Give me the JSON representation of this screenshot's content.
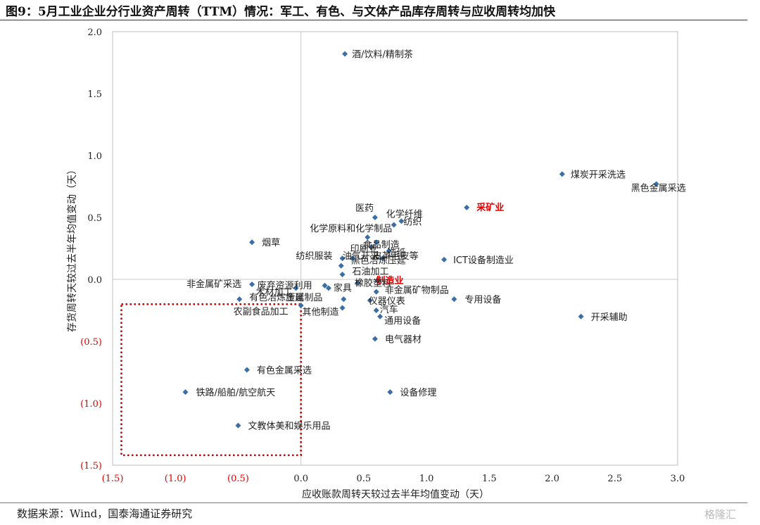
{
  "title": "图9：5月工业企业分行业资产周转（TTM）情况：军工、有色、与文体产品库存周转与应收周转均加快",
  "source": "数据来源：Wind，国泰海通证券研究",
  "watermark": "格隆汇",
  "chart_data": {
    "type": "scatter",
    "title": "",
    "xlabel": "应收账款周转天较过去半年均值变动（天）",
    "ylabel": "存货周转天较过去半年均值变动（天）",
    "xlim": [
      -1.5,
      3.0
    ],
    "ylim": [
      -1.5,
      2.0
    ],
    "xticks": [
      -1.5,
      -1.0,
      -0.5,
      0.0,
      0.5,
      1.0,
      1.5,
      2.0,
      2.5,
      3.0
    ],
    "yticks": [
      -1.5,
      -1.0,
      -0.5,
      0.0,
      0.5,
      1.0,
      1.5,
      2.0
    ],
    "xtick_labels": [
      "(1.5)",
      "(1.0)",
      "(0.5)",
      "0.0",
      "0.5",
      "1.0",
      "1.5",
      "2.0",
      "2.5",
      "3.0"
    ],
    "ytick_labels": [
      "(1.5)",
      "(1.0)",
      "(0.5)",
      "0.0",
      "0.5",
      "1.0",
      "1.5",
      "2.0"
    ],
    "negative_tick_color": "#e00000",
    "marker_color": "#3a6ea5",
    "highlight_color": "#e00000",
    "grid": false,
    "reference_lines": {
      "x": 0.0,
      "y": 0.0
    },
    "highlight_box": {
      "x": [
        -1.43,
        0.0
      ],
      "y": [
        -1.42,
        -0.2
      ],
      "color": "#c00000",
      "style": "dotted"
    },
    "points": [
      {
        "label": "酒/饮料/精制茶",
        "x": 0.35,
        "y": 1.82
      },
      {
        "label": "煤炭开采洗选",
        "x": 2.08,
        "y": 0.85
      },
      {
        "label": "黑色金属采选",
        "x": 2.83,
        "y": 0.77
      },
      {
        "label": "采矿业",
        "x": 1.32,
        "y": 0.58,
        "highlight": true
      },
      {
        "label": "医药",
        "x": 0.59,
        "y": 0.5
      },
      {
        "label": "化学纤维",
        "x": 0.74,
        "y": 0.44
      },
      {
        "label": "纺织",
        "x": 0.8,
        "y": 0.47
      },
      {
        "label": "化学原料和化学制品",
        "x": 0.53,
        "y": 0.34
      },
      {
        "label": "食品制造",
        "x": 0.6,
        "y": 0.3
      },
      {
        "label": "印刷业",
        "x": 0.56,
        "y": 0.26
      },
      {
        "label": "造纸",
        "x": 0.7,
        "y": 0.23
      },
      {
        "label": "烟草",
        "x": -0.39,
        "y": 0.3
      },
      {
        "label": "纺织服装",
        "x": 0.33,
        "y": 0.17
      },
      {
        "label": "油气开采",
        "x": 0.41,
        "y": 0.17
      },
      {
        "label": "皮革毛皮等",
        "x": 0.65,
        "y": 0.17
      },
      {
        "label": "ICT设备制造业",
        "x": 1.14,
        "y": 0.16
      },
      {
        "label": "黑色冶炼压延",
        "x": 0.32,
        "y": 0.11
      },
      {
        "label": "石油加工",
        "x": 0.33,
        "y": 0.04
      },
      {
        "label": "制造业",
        "x": 0.61,
        "y": -0.01,
        "highlight": true
      },
      {
        "label": "废弃资源利用",
        "x": 0.19,
        "y": -0.05
      },
      {
        "label": "橡胶塑料",
        "x": 0.45,
        "y": -0.03
      },
      {
        "label": "家具",
        "x": 0.22,
        "y": -0.07
      },
      {
        "label": "非金属矿采选",
        "x": -0.39,
        "y": -0.04
      },
      {
        "label": "木材加工",
        "x": -0.04,
        "y": -0.07
      },
      {
        "label": "非金属矿物制品",
        "x": 0.6,
        "y": -0.1
      },
      {
        "label": "有色冶炼压延",
        "x": -0.49,
        "y": -0.16
      },
      {
        "label": "金属制品",
        "x": 0.34,
        "y": -0.16
      },
      {
        "label": "仪器仪表",
        "x": 0.55,
        "y": -0.17
      },
      {
        "label": "专用设备",
        "x": 1.22,
        "y": -0.16
      },
      {
        "label": "汽车",
        "x": 0.6,
        "y": -0.25
      },
      {
        "label": "农副食品加工",
        "x": 0.0,
        "y": -0.21
      },
      {
        "label": "其他制造",
        "x": 0.33,
        "y": -0.23
      },
      {
        "label": "通用设备",
        "x": 0.63,
        "y": -0.3
      },
      {
        "label": "开采辅助",
        "x": 2.23,
        "y": -0.3
      },
      {
        "label": "电气器材",
        "x": 0.59,
        "y": -0.48
      },
      {
        "label": "有色金属采选",
        "x": -0.43,
        "y": -0.73
      },
      {
        "label": "铁路/船舶/航空航天",
        "x": -0.92,
        "y": -0.91
      },
      {
        "label": "设备修理",
        "x": 0.71,
        "y": -0.91
      },
      {
        "label": "文教体美和娱乐用品",
        "x": -0.5,
        "y": -1.18
      }
    ]
  }
}
